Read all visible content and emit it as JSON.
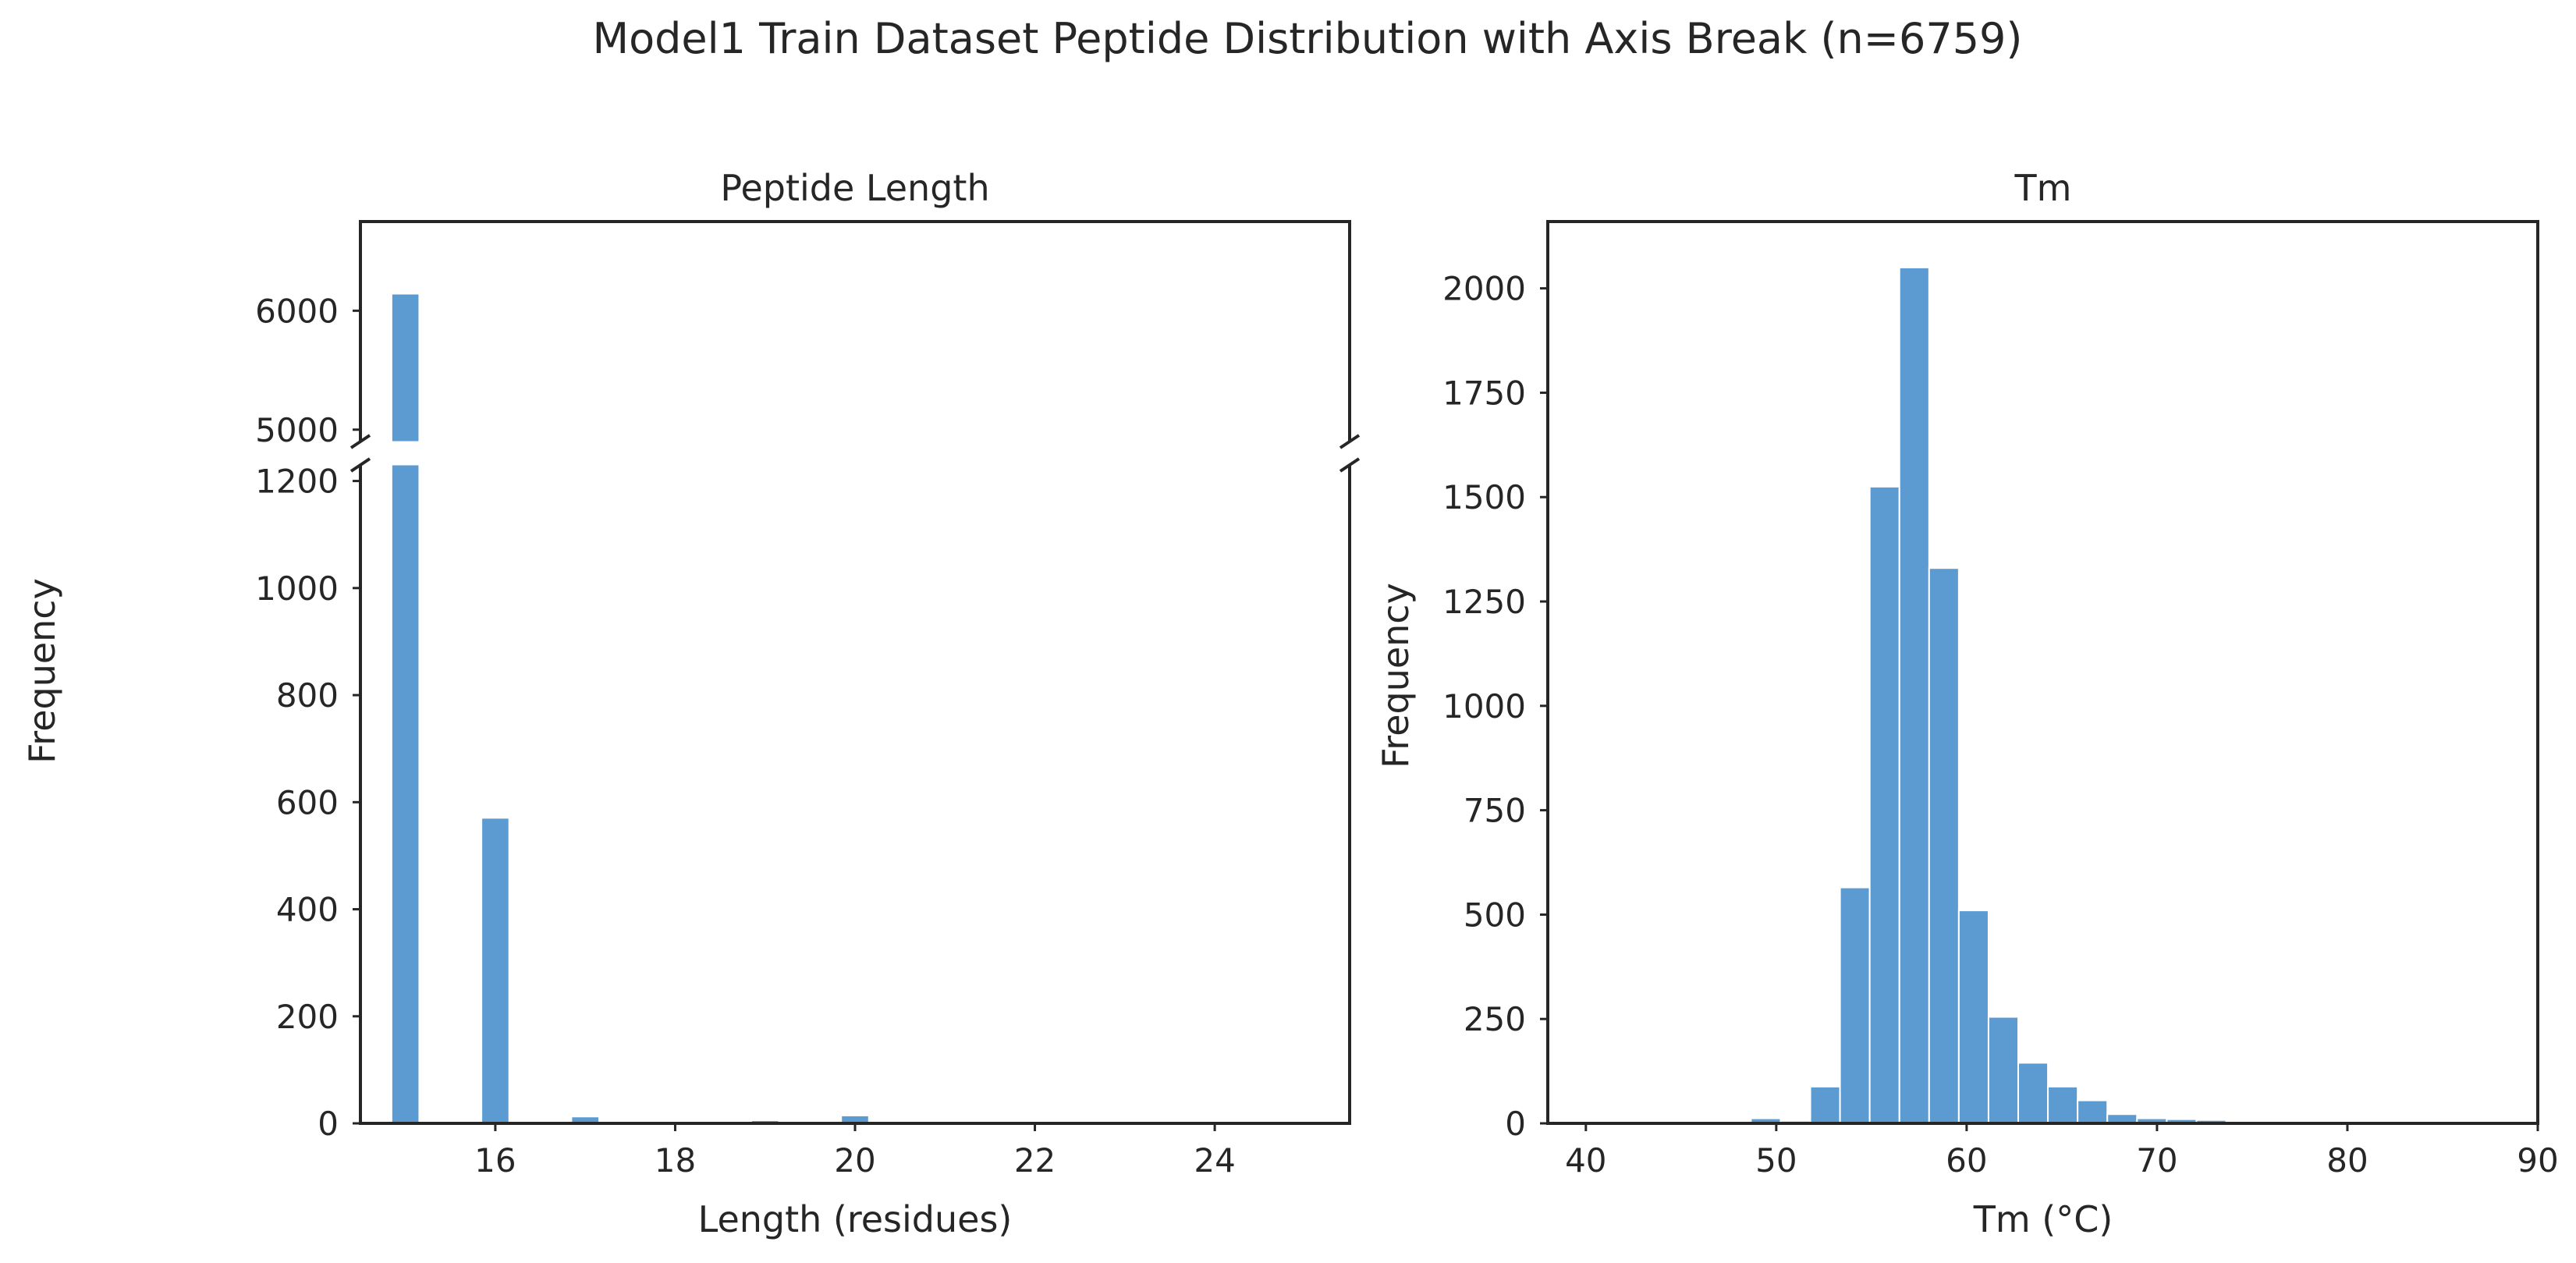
{
  "figure": {
    "suptitle": "Model1 Train Dataset Peptide Distribution with Axis Break (n=6759)",
    "shared_ylabel": "Frequency"
  },
  "colors": {
    "bar": "#5b9bd1",
    "axis": "#262626",
    "background": "#ffffff"
  },
  "chart_data": [
    {
      "type": "bar",
      "title": "Peptide Length",
      "xlabel": "Length (residues)",
      "ylabel": "Frequency",
      "axis_break": true,
      "grid": false,
      "xlim": [
        14.5,
        25.5
      ],
      "xticks": [
        16,
        18,
        20,
        22,
        24
      ],
      "bin_width": 0.3,
      "lower_ylim": [
        0,
        1230
      ],
      "lower_yticks": [
        0,
        200,
        400,
        600,
        800,
        1000,
        1200
      ],
      "upper_ylim": [
        4900,
        6750
      ],
      "upper_yticks": [
        5000,
        6000
      ],
      "bars": [
        {
          "x": 15,
          "value": 6140
        },
        {
          "x": 16,
          "value": 570
        },
        {
          "x": 17,
          "value": 12
        },
        {
          "x": 19,
          "value": 5
        },
        {
          "x": 20,
          "value": 14
        }
      ]
    },
    {
      "type": "bar",
      "title": "Tm",
      "xlabel": "Tm (°C)",
      "ylabel": "Frequency",
      "grid": false,
      "xlim": [
        38,
        90
      ],
      "xticks": [
        40,
        50,
        60,
        70,
        80,
        90
      ],
      "ylim": [
        0,
        2160
      ],
      "yticks": [
        0,
        250,
        500,
        750,
        1000,
        1250,
        1500,
        1750,
        2000
      ],
      "bin_width": 1.56,
      "bars": [
        {
          "x": 46.33,
          "value": 0
        },
        {
          "x": 47.89,
          "value": 4
        },
        {
          "x": 49.45,
          "value": 12
        },
        {
          "x": 51.01,
          "value": 6
        },
        {
          "x": 52.57,
          "value": 88
        },
        {
          "x": 54.13,
          "value": 565
        },
        {
          "x": 55.69,
          "value": 1525
        },
        {
          "x": 57.25,
          "value": 2050
        },
        {
          "x": 58.81,
          "value": 1330
        },
        {
          "x": 60.37,
          "value": 510
        },
        {
          "x": 61.93,
          "value": 255
        },
        {
          "x": 63.49,
          "value": 145
        },
        {
          "x": 65.05,
          "value": 88
        },
        {
          "x": 66.61,
          "value": 55
        },
        {
          "x": 68.17,
          "value": 22
        },
        {
          "x": 69.73,
          "value": 12
        },
        {
          "x": 71.29,
          "value": 10
        },
        {
          "x": 72.85,
          "value": 8
        }
      ]
    }
  ]
}
